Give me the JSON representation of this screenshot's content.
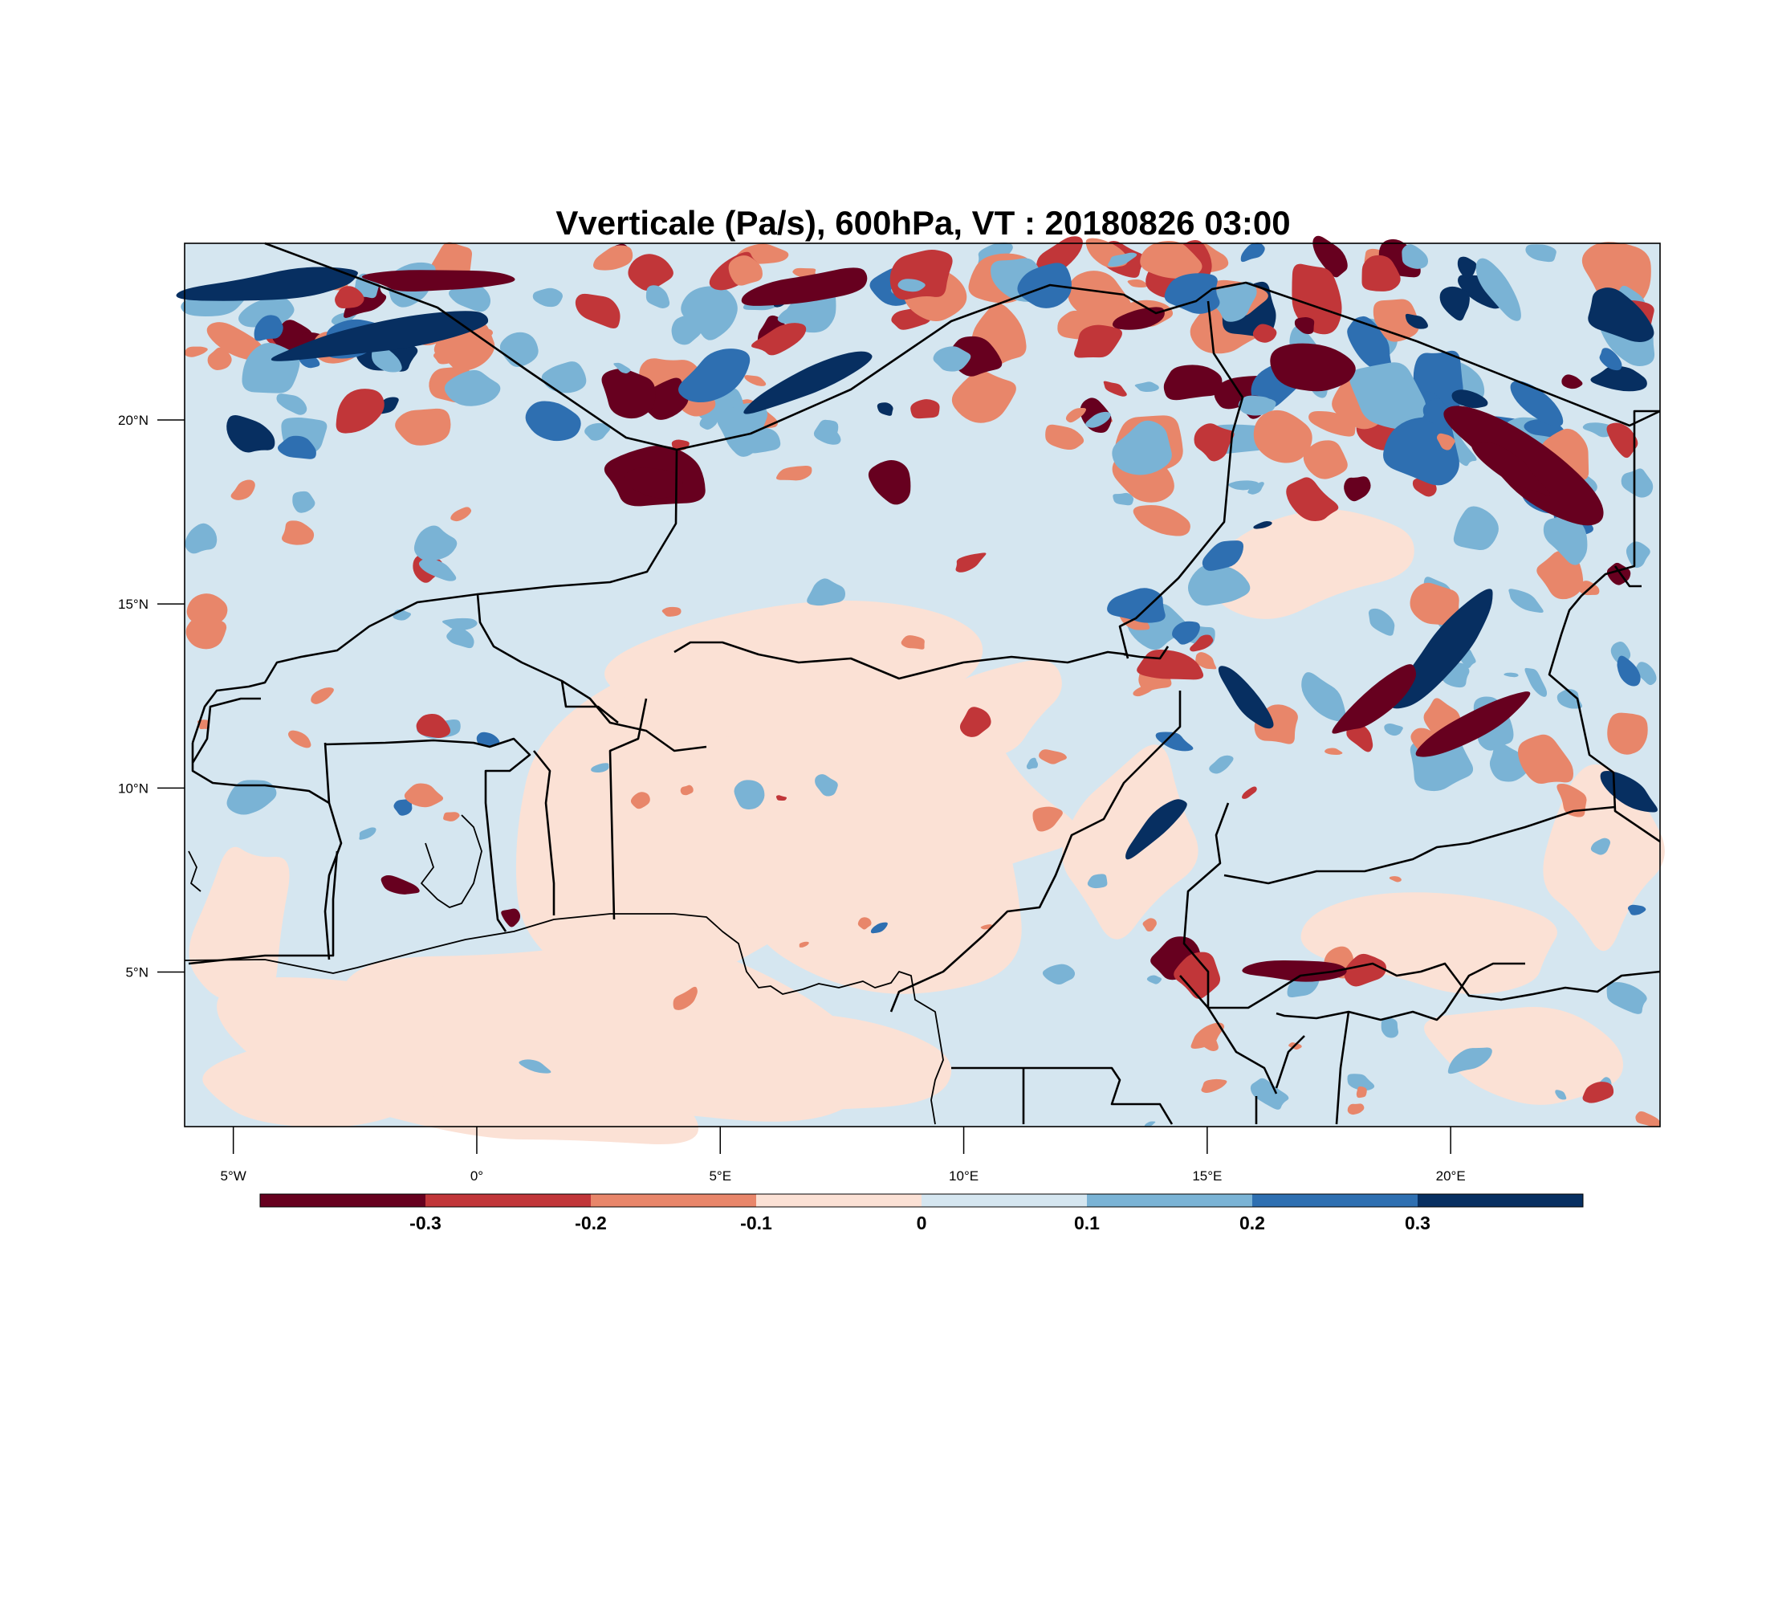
{
  "title": "Vverticale (Pa/s), 600hPa, VT : 20180826  03:00",
  "map": {
    "lon_range": [
      -6,
      24.3
    ],
    "lat_range": [
      0.8,
      24.8
    ],
    "lat_ticks": [
      {
        "value": 20,
        "label": "20°N"
      },
      {
        "value": 15,
        "label": "15°N"
      },
      {
        "value": 10,
        "label": "10°N"
      },
      {
        "value": 5,
        "label": "5°N"
      }
    ],
    "lon_ticks": [
      {
        "value": -5,
        "label": "5°W"
      },
      {
        "value": 0,
        "label": "0°"
      },
      {
        "value": 5,
        "label": "5°E"
      },
      {
        "value": 10,
        "label": "10°E"
      },
      {
        "value": 15,
        "label": "15°E"
      },
      {
        "value": 20,
        "label": "20°E"
      }
    ]
  },
  "colorbar": {
    "colors": [
      "#67001f",
      "#c13639",
      "#e8866a",
      "#fbe1d5",
      "#d5e6f0",
      "#7ab3d5",
      "#2e6fb1",
      "#072f61"
    ],
    "labels": [
      "-0.3",
      "-0.2",
      "-0.1",
      "0",
      "0.1",
      "0.2",
      "0.3"
    ]
  }
}
